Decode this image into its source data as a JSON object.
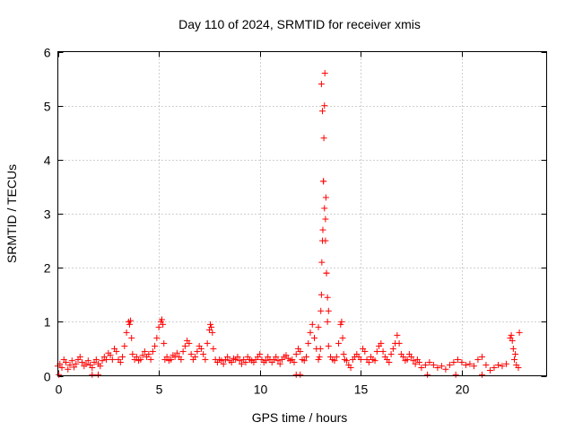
{
  "chart_data": {
    "type": "scatter",
    "title": "Day 110 of 2024, SRMTID for receiver xmis",
    "xlabel": "GPS time / hours",
    "ylabel": "SRMTID / TECUs",
    "xlim": [
      0,
      24.2
    ],
    "ylim": [
      0,
      6
    ],
    "xticks": [
      0,
      5,
      10,
      15,
      20
    ],
    "yticks": [
      0,
      1,
      2,
      3,
      4,
      5,
      6
    ],
    "x_tick_labels": [
      "0",
      "5",
      "10",
      "15",
      "20"
    ],
    "y_tick_labels": [
      "0",
      "1",
      "2",
      "3",
      "4",
      "5",
      "6"
    ],
    "grid": true,
    "marker": "plus",
    "color": "#ff0000",
    "series": [
      {
        "name": "SRMTID",
        "x": [
          0.0,
          0.1,
          0.2,
          0.3,
          0.4,
          0.5,
          0.6,
          0.7,
          0.8,
          0.9,
          1.0,
          1.1,
          1.2,
          1.3,
          1.4,
          1.5,
          1.6,
          1.7,
          1.8,
          1.9,
          2.0,
          2.1,
          2.2,
          2.3,
          2.4,
          2.5,
          2.6,
          2.7,
          2.8,
          2.9,
          3.0,
          3.1,
          3.2,
          3.3,
          3.4,
          3.5,
          3.55,
          3.6,
          3.65,
          3.7,
          3.8,
          3.9,
          4.0,
          4.1,
          4.2,
          4.3,
          4.4,
          4.5,
          4.6,
          4.7,
          4.8,
          4.9,
          5.0,
          5.1,
          5.15,
          5.2,
          5.25,
          5.3,
          5.4,
          5.5,
          5.6,
          5.7,
          5.8,
          5.9,
          6.0,
          6.1,
          6.2,
          6.3,
          6.4,
          6.5,
          6.6,
          6.7,
          6.8,
          6.9,
          7.0,
          7.1,
          7.2,
          7.3,
          7.4,
          7.5,
          7.55,
          7.6,
          7.65,
          7.7,
          7.8,
          7.9,
          8.0,
          8.1,
          8.2,
          8.3,
          8.4,
          8.5,
          8.6,
          8.7,
          8.8,
          8.9,
          9.0,
          9.1,
          9.2,
          9.3,
          9.4,
          9.5,
          9.6,
          9.7,
          9.8,
          9.9,
          10.0,
          10.1,
          10.2,
          10.3,
          10.4,
          10.5,
          10.6,
          10.7,
          10.8,
          10.9,
          11.0,
          11.1,
          11.2,
          11.3,
          11.4,
          11.5,
          11.6,
          11.7,
          11.8,
          11.9,
          12.0,
          12.1,
          12.2,
          12.3,
          12.4,
          12.5,
          12.6,
          12.7,
          12.8,
          12.9,
          12.95,
          13.0,
          13.02,
          13.05,
          13.07,
          13.1,
          13.12,
          13.15,
          13.17,
          13.2,
          13.22,
          13.25,
          13.27,
          13.3,
          13.35,
          13.4,
          13.5,
          13.6,
          13.7,
          13.8,
          13.9,
          14.0,
          14.05,
          14.1,
          14.15,
          14.2,
          14.3,
          14.4,
          14.5,
          14.6,
          14.7,
          14.8,
          14.9,
          15.0,
          15.1,
          15.2,
          15.3,
          15.4,
          15.5,
          15.6,
          15.7,
          15.8,
          15.9,
          16.0,
          16.1,
          16.2,
          16.3,
          16.4,
          16.5,
          16.6,
          16.7,
          16.8,
          16.9,
          17.0,
          17.1,
          17.2,
          17.3,
          17.4,
          17.5,
          17.6,
          17.7,
          17.8,
          17.9,
          18.0,
          18.2,
          18.4,
          18.6,
          18.8,
          19.0,
          19.2,
          19.4,
          19.6,
          19.8,
          20.0,
          20.2,
          20.4,
          20.6,
          20.8,
          21.0,
          21.2,
          21.4,
          21.6,
          21.8,
          22.0,
          22.2,
          22.4,
          22.45,
          22.5,
          22.55,
          22.6,
          22.65,
          22.7,
          22.8,
          22.85,
          0.05,
          1.7,
          2.0,
          11.8,
          12.0,
          18.3,
          19.7,
          21.0,
          12.9,
          13.05,
          13.1,
          13.15,
          13.2,
          13.25,
          13.3,
          13.35,
          13.4
        ],
        "y": [
          0.18,
          0.22,
          0.15,
          0.3,
          0.25,
          0.12,
          0.2,
          0.28,
          0.16,
          0.22,
          0.3,
          0.35,
          0.25,
          0.18,
          0.22,
          0.28,
          0.2,
          0.15,
          0.25,
          0.3,
          0.22,
          0.18,
          0.28,
          0.35,
          0.3,
          0.42,
          0.38,
          0.3,
          0.5,
          0.45,
          0.3,
          0.25,
          0.35,
          0.55,
          0.8,
          1.0,
          0.95,
          1.02,
          0.7,
          0.4,
          0.3,
          0.35,
          0.28,
          0.3,
          0.38,
          0.45,
          0.35,
          0.4,
          0.3,
          0.45,
          0.55,
          0.7,
          0.9,
          1.0,
          1.04,
          0.95,
          0.6,
          0.3,
          0.35,
          0.28,
          0.3,
          0.38,
          0.35,
          0.42,
          0.35,
          0.3,
          0.45,
          0.55,
          0.65,
          0.6,
          0.4,
          0.3,
          0.35,
          0.45,
          0.55,
          0.5,
          0.4,
          0.3,
          0.6,
          0.85,
          0.95,
          0.9,
          0.8,
          0.5,
          0.3,
          0.25,
          0.3,
          0.28,
          0.22,
          0.3,
          0.35,
          0.28,
          0.25,
          0.32,
          0.3,
          0.35,
          0.28,
          0.22,
          0.3,
          0.25,
          0.35,
          0.3,
          0.28,
          0.25,
          0.3,
          0.35,
          0.4,
          0.3,
          0.25,
          0.28,
          0.35,
          0.3,
          0.25,
          0.3,
          0.35,
          0.28,
          0.22,
          0.3,
          0.35,
          0.38,
          0.32,
          0.28,
          0.3,
          0.25,
          0.4,
          0.5,
          0.45,
          0.3,
          0.28,
          0.35,
          0.6,
          0.8,
          0.95,
          0.7,
          0.5,
          0.3,
          0.35,
          0.5,
          1.2,
          1.5,
          2.1,
          2.5,
          2.7,
          3.6,
          4.4,
          5.0,
          5.6,
          2.9,
          3.3,
          1.9,
          1.0,
          0.55,
          0.35,
          0.3,
          0.28,
          0.35,
          0.6,
          0.95,
          1.0,
          0.7,
          0.4,
          0.3,
          0.28,
          0.2,
          0.15,
          0.3,
          0.35,
          0.4,
          0.35,
          0.3,
          0.5,
          0.45,
          0.3,
          0.25,
          0.35,
          0.3,
          0.28,
          0.45,
          0.55,
          0.6,
          0.45,
          0.35,
          0.3,
          0.25,
          0.4,
          0.5,
          0.6,
          0.75,
          0.6,
          0.4,
          0.35,
          0.28,
          0.3,
          0.4,
          0.35,
          0.28,
          0.22,
          0.3,
          0.25,
          0.15,
          0.2,
          0.25,
          0.2,
          0.15,
          0.18,
          0.12,
          0.2,
          0.25,
          0.3,
          0.25,
          0.2,
          0.22,
          0.18,
          0.3,
          0.35,
          0.2,
          0.1,
          0.15,
          0.2,
          0.18,
          0.22,
          0.7,
          0.75,
          0.65,
          0.5,
          0.3,
          0.4,
          0.2,
          0.15,
          0.8,
          0.02,
          0.02,
          0.02,
          0.02,
          0.02,
          0.02,
          0.02,
          0.02,
          0.9,
          5.4,
          4.9,
          3.6,
          3.1,
          2.5,
          1.9,
          1.45,
          1.2
        ]
      }
    ]
  }
}
